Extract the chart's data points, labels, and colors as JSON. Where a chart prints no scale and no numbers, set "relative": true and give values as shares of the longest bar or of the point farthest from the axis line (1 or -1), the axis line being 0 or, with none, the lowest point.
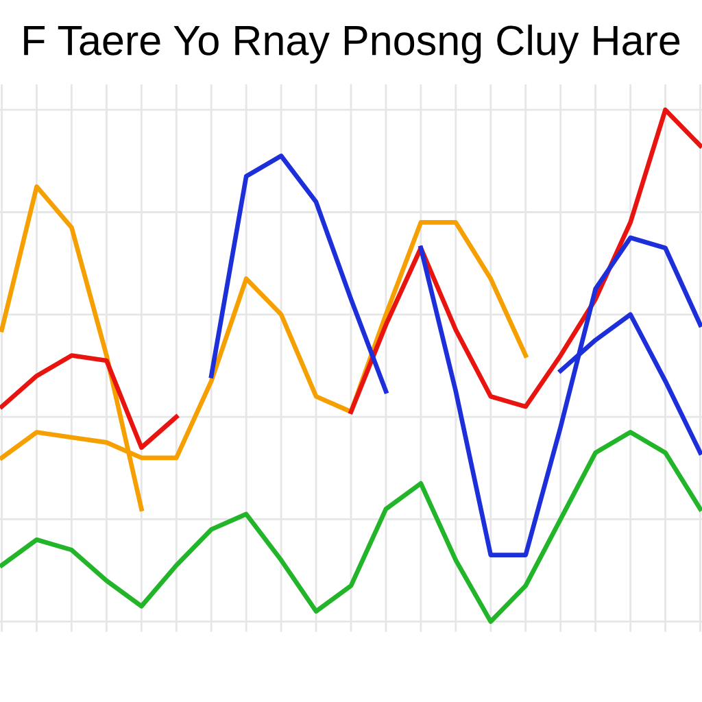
{
  "chart_data": {
    "type": "line",
    "title": "F Taere Yo Rnay Pnosng Cluy Hare",
    "relative": true,
    "grid": true,
    "legend": false,
    "categories": [
      null,
      null,
      null,
      null,
      null,
      null,
      null,
      null,
      null,
      null,
      null,
      null,
      null,
      null,
      null,
      null,
      null,
      null,
      null,
      null,
      null
    ],
    "series": [
      {
        "color": "#f5a000",
        "values": [
          0.57,
          0.85,
          0.77,
          0.52,
          0.22,
          null,
          null,
          null,
          null,
          null,
          null,
          null,
          null,
          null,
          null,
          null,
          null,
          null,
          null,
          null,
          null
        ]
      },
      {
        "color": "#f5a000",
        "values": [
          0.32,
          0.37,
          0.36,
          0.35,
          0.32,
          0.32,
          0.47,
          0.67,
          0.6,
          0.44,
          0.41,
          0.6,
          0.78,
          0.78,
          0.67,
          0.52,
          null,
          null,
          null,
          null,
          null
        ]
      },
      {
        "color": "#e8140f",
        "values": [
          0.42,
          0.48,
          0.52,
          0.51,
          0.34,
          0.4,
          null,
          null,
          null,
          null,
          0.41,
          0.58,
          0.73,
          0.57,
          0.44,
          0.42,
          0.52,
          0.63,
          0.78,
          1.0,
          0.93
        ]
      },
      {
        "color": "#1c2fd8",
        "values": [
          null,
          null,
          null,
          null,
          null,
          null,
          0.48,
          0.87,
          0.91,
          0.82,
          0.63,
          0.45,
          null,
          null,
          null,
          null,
          null,
          null,
          null,
          null,
          null
        ]
      },
      {
        "color": "#1c2fd8",
        "values": [
          null,
          null,
          null,
          null,
          null,
          null,
          null,
          null,
          null,
          null,
          null,
          null,
          0.73,
          0.45,
          0.13,
          0.13,
          0.38,
          0.65,
          0.75,
          0.73,
          0.58
        ]
      },
      {
        "color": "#1c2fd8",
        "values": [
          null,
          null,
          null,
          null,
          null,
          null,
          null,
          null,
          null,
          null,
          null,
          null,
          null,
          null,
          null,
          null,
          0.49,
          0.55,
          0.6,
          0.47,
          0.33
        ]
      },
      {
        "color": "#22b52a",
        "values": [
          0.11,
          0.16,
          0.14,
          0.08,
          0.03,
          0.11,
          0.18,
          0.21,
          0.12,
          0.02,
          0.07,
          0.22,
          0.27,
          0.12,
          0.0,
          0.07,
          0.2,
          0.33,
          0.37,
          0.33,
          0.22
        ]
      }
    ]
  }
}
